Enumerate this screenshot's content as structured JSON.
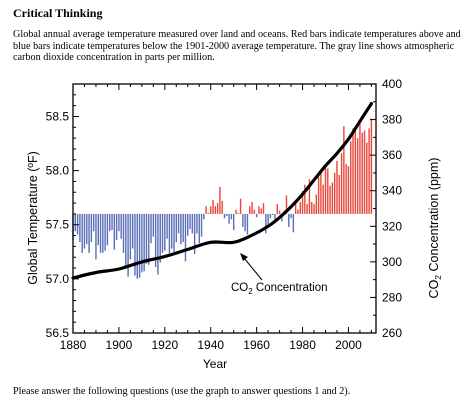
{
  "heading": "Critical Thinking",
  "intro": "Global annual average temperature measured over land and oceans. Red bars indicate temperatures above and blue bars indicate temperatures below the 1901-2000 average temperature. The gray line shows atmospheric carbon dioxide concentration in parts per million.",
  "footer": "Please answer the following questions (use the graph to answer questions 1 and 2).",
  "colors": {
    "above": "#e8483a",
    "below": "#5b6fb8",
    "co2_line": "#000000",
    "axis": "#000000"
  },
  "chart_data": {
    "type": "bar",
    "xlabel": "Year",
    "ylabel": "Global Temperature (ºF)",
    "y2label_main": "CO",
    "y2label_sub": "2",
    "y2label_rest": " Concentration (ppm)",
    "xlim": [
      1880,
      2012
    ],
    "ylim": [
      56.5,
      58.8
    ],
    "y2lim": [
      260,
      400
    ],
    "baseline": 57.6,
    "xticks": [
      1880,
      1900,
      1920,
      1940,
      1960,
      1980,
      2000
    ],
    "yticks": [
      "56.5",
      "57.0",
      "57.5",
      "58.0",
      "58.5"
    ],
    "ytick_values": [
      56.5,
      57.0,
      57.5,
      58.0,
      58.5
    ],
    "y2ticks": [
      260,
      280,
      300,
      320,
      340,
      360,
      380,
      400
    ],
    "annotation": {
      "main": "CO",
      "sub": "2",
      "rest": " Concentration"
    },
    "years": [
      1880,
      1881,
      1882,
      1883,
      1884,
      1885,
      1886,
      1887,
      1888,
      1889,
      1890,
      1891,
      1892,
      1893,
      1894,
      1895,
      1896,
      1897,
      1898,
      1899,
      1900,
      1901,
      1902,
      1903,
      1904,
      1905,
      1906,
      1907,
      1908,
      1909,
      1910,
      1911,
      1912,
      1913,
      1914,
      1915,
      1916,
      1917,
      1918,
      1919,
      1920,
      1921,
      1922,
      1923,
      1924,
      1925,
      1926,
      1927,
      1928,
      1929,
      1930,
      1931,
      1932,
      1933,
      1934,
      1935,
      1936,
      1937,
      1938,
      1939,
      1940,
      1941,
      1942,
      1943,
      1944,
      1945,
      1946,
      1947,
      1948,
      1949,
      1950,
      1951,
      1952,
      1953,
      1954,
      1955,
      1956,
      1957,
      1958,
      1959,
      1960,
      1961,
      1962,
      1963,
      1964,
      1965,
      1966,
      1967,
      1968,
      1969,
      1970,
      1971,
      1972,
      1973,
      1974,
      1975,
      1976,
      1977,
      1978,
      1979,
      1980,
      1981,
      1982,
      1983,
      1984,
      1985,
      1986,
      1987,
      1988,
      1989,
      1990,
      1991,
      1992,
      1993,
      1994,
      1995,
      1996,
      1997,
      1998,
      1999,
      2000,
      2001,
      2002,
      2003,
      2004,
      2005,
      2006,
      2007,
      2008,
      2009,
      2010
    ],
    "temps": [
      57.36,
      57.44,
      57.41,
      57.34,
      57.24,
      57.28,
      57.32,
      57.24,
      57.34,
      57.44,
      57.18,
      57.31,
      57.24,
      57.24,
      57.26,
      57.31,
      57.44,
      57.45,
      57.27,
      57.36,
      57.44,
      57.37,
      57.24,
      57.12,
      57.02,
      57.18,
      57.28,
      57.03,
      57.0,
      57.01,
      57.06,
      57.07,
      57.14,
      57.13,
      57.33,
      57.39,
      57.11,
      57.04,
      57.15,
      57.24,
      57.26,
      57.37,
      57.24,
      57.28,
      57.25,
      57.34,
      57.42,
      57.32,
      57.34,
      57.16,
      57.4,
      57.46,
      57.42,
      57.23,
      57.42,
      57.33,
      57.39,
      57.55,
      57.67,
      57.61,
      57.67,
      57.73,
      57.67,
      57.7,
      57.85,
      57.72,
      57.56,
      57.58,
      57.51,
      57.55,
      57.45,
      57.64,
      57.61,
      57.74,
      57.48,
      57.44,
      57.41,
      57.67,
      57.71,
      57.64,
      57.57,
      57.67,
      57.65,
      57.7,
      57.42,
      57.5,
      57.56,
      57.59,
      57.55,
      57.69,
      57.63,
      57.53,
      57.63,
      57.77,
      57.48,
      57.56,
      57.43,
      57.72,
      57.64,
      57.71,
      57.81,
      57.87,
      57.69,
      57.92,
      57.71,
      57.69,
      57.78,
      57.94,
      57.99,
      57.87,
      58.06,
      58.02,
      57.86,
      57.89,
      57.98,
      58.09,
      57.96,
      58.16,
      58.41,
      58.06,
      58.04,
      58.27,
      58.39,
      58.38,
      58.3,
      58.45,
      58.35,
      58.37,
      58.26,
      58.39,
      58.48
    ],
    "co2": {
      "years": [
        1880,
        1890,
        1900,
        1910,
        1920,
        1930,
        1940,
        1950,
        1958,
        1965,
        1970,
        1975,
        1980,
        1985,
        1990,
        1995,
        2000,
        2005,
        2010
      ],
      "values": [
        291,
        294,
        296,
        300,
        303,
        307,
        311,
        311,
        315,
        320,
        325,
        331,
        338,
        346,
        354,
        361,
        369,
        379,
        389
      ]
    }
  }
}
